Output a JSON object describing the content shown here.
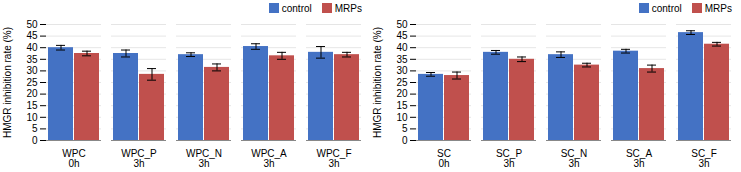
{
  "chart_data": [
    {
      "type": "bar",
      "categories": [
        "WPC\n0h",
        "WPC_P\n3h",
        "WPC_N\n3h",
        "WPC_A\n3h",
        "WPC_F\n3h"
      ],
      "series": [
        {
          "name": "control",
          "color": "#4472C4",
          "values": [
            40.0,
            37.5,
            37.0,
            40.5,
            38.0
          ],
          "errors": [
            1.0,
            1.5,
            0.8,
            1.2,
            2.5
          ]
        },
        {
          "name": "MRPs",
          "color": "#C0504D",
          "values": [
            37.5,
            28.5,
            31.5,
            36.5,
            37.0
          ],
          "errors": [
            1.0,
            2.5,
            1.5,
            1.5,
            1.0
          ]
        }
      ],
      "ylabel": "HMGR inhibition rate (%)",
      "ylim": [
        0,
        50
      ],
      "yticks": [
        0,
        5,
        10,
        15,
        20,
        25,
        30,
        35,
        40,
        45,
        50
      ],
      "grid": true,
      "legend": "upper right"
    },
    {
      "type": "bar",
      "categories": [
        "SC\n0h",
        "SC_P\n3h",
        "SC_N\n3h",
        "SC_A\n3h",
        "SC_F\n3h"
      ],
      "series": [
        {
          "name": "control",
          "color": "#4472C4",
          "values": [
            28.5,
            38.0,
            37.0,
            38.5,
            46.5
          ],
          "errors": [
            0.8,
            0.8,
            1.2,
            0.8,
            0.8
          ]
        },
        {
          "name": "MRPs",
          "color": "#C0504D",
          "values": [
            28.0,
            35.0,
            32.5,
            31.0,
            41.5
          ],
          "errors": [
            1.5,
            1.0,
            0.8,
            1.5,
            0.8
          ]
        }
      ],
      "ylabel": "HMGR inhibition rate (%)",
      "ylim": [
        0,
        50
      ],
      "yticks": [
        0,
        5,
        10,
        15,
        20,
        25,
        30,
        35,
        40,
        45,
        50
      ],
      "grid": true,
      "legend": "upper right"
    }
  ]
}
